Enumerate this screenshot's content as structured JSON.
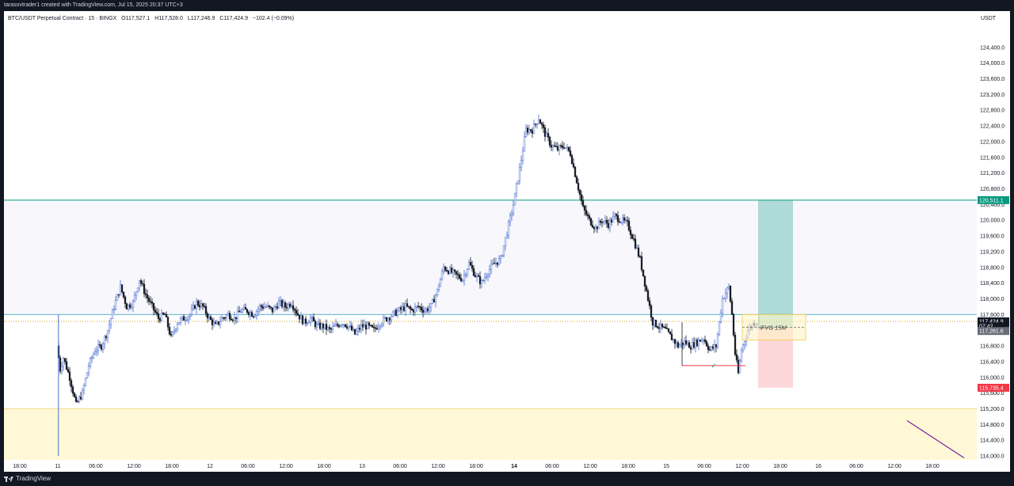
{
  "header": {
    "attribution": "tarasovtrader1 created with TradingView.com, Jul 15, 2025 20:37 UTC+3"
  },
  "footer": {
    "brand": "TradingView"
  },
  "chart_data": {
    "type": "candlestick",
    "symbol_line": {
      "symbol": "BTC/USDT Perpetual Contract · 15 · BINGX",
      "open": "O117,527.1",
      "high": "H117,528.0",
      "low": "L117,246.9",
      "close": "C117,424.9",
      "change": "−102.4 (−0.09%)"
    },
    "currency": "USDT",
    "ylim": [
      113900,
      125000
    ],
    "y_ticks": [
      114000,
      114400,
      114800,
      115200,
      115600,
      116000,
      116400,
      116800,
      117200,
      117600,
      118000,
      118400,
      118800,
      119200,
      119600,
      120000,
      120400,
      120800,
      121200,
      121600,
      122000,
      122400,
      122800,
      123200,
      123600,
      124000,
      124400
    ],
    "y_tick_labels": [
      "114,000.0",
      "114,400.0",
      "114,800.0",
      "115,200.0",
      "115,600.0",
      "116,000.0",
      "116,400.0",
      "116,800.0",
      "117,200.0",
      "117,600.0",
      "118,000.0",
      "118,400.0",
      "118,800.0",
      "119,200.0",
      "119,600.0",
      "120,000.0",
      "120,400.0",
      "120,800.0",
      "121,200.0",
      "121,600.0",
      "122,000.0",
      "122,400.0",
      "122,800.0",
      "123,200.0",
      "123,600.0",
      "124,000.0",
      "124,400.0"
    ],
    "x_ticks": [
      {
        "label": "18:00",
        "hour": -6,
        "bold": false
      },
      {
        "label": "11",
        "hour": 0,
        "bold": false
      },
      {
        "label": "06:00",
        "hour": 6,
        "bold": false
      },
      {
        "label": "12:00",
        "hour": 12,
        "bold": false
      },
      {
        "label": "18:00",
        "hour": 18,
        "bold": false
      },
      {
        "label": "12",
        "hour": 24,
        "bold": false
      },
      {
        "label": "06:00",
        "hour": 30,
        "bold": false
      },
      {
        "label": "12:00",
        "hour": 36,
        "bold": false
      },
      {
        "label": "18:00",
        "hour": 42,
        "bold": false
      },
      {
        "label": "13",
        "hour": 48,
        "bold": false
      },
      {
        "label": "06:00",
        "hour": 54,
        "bold": false
      },
      {
        "label": "12:00",
        "hour": 60,
        "bold": false
      },
      {
        "label": "18:00",
        "hour": 66,
        "bold": false
      },
      {
        "label": "14",
        "hour": 72,
        "bold": true
      },
      {
        "label": "06:00",
        "hour": 78,
        "bold": false
      },
      {
        "label": "12:00",
        "hour": 84,
        "bold": false
      },
      {
        "label": "18:00",
        "hour": 90,
        "bold": false
      },
      {
        "label": "15",
        "hour": 96,
        "bold": false
      },
      {
        "label": "06:00",
        "hour": 102,
        "bold": false
      },
      {
        "label": "12:00",
        "hour": 108,
        "bold": false
      },
      {
        "label": "18:00",
        "hour": 114,
        "bold": false
      },
      {
        "label": "16",
        "hour": 120,
        "bold": false
      },
      {
        "label": "06:00",
        "hour": 126,
        "bold": false
      },
      {
        "label": "12:00",
        "hour": 132,
        "bold": false
      },
      {
        "label": "18:00",
        "hour": 138,
        "bold": false
      }
    ],
    "price_path": [
      [
        0.0,
        116800
      ],
      [
        0.5,
        116200
      ],
      [
        1,
        116500
      ],
      [
        2,
        116000
      ],
      [
        3,
        115300
      ],
      [
        4,
        115600
      ],
      [
        5,
        116300
      ],
      [
        6,
        116700
      ],
      [
        7,
        116800
      ],
      [
        8,
        117200
      ],
      [
        9,
        117800
      ],
      [
        10,
        118300
      ],
      [
        11,
        117800
      ],
      [
        12,
        117900
      ],
      [
        13,
        118500
      ],
      [
        14,
        118100
      ],
      [
        15,
        117800
      ],
      [
        16,
        117500
      ],
      [
        17,
        117600
      ],
      [
        18,
        117000
      ],
      [
        19,
        117400
      ],
      [
        20,
        117500
      ],
      [
        21,
        117600
      ],
      [
        22,
        117900
      ],
      [
        23,
        117800
      ],
      [
        24,
        117500
      ],
      [
        25,
        117300
      ],
      [
        26,
        117500
      ],
      [
        27,
        117600
      ],
      [
        28,
        117500
      ],
      [
        29,
        117700
      ],
      [
        30,
        117700
      ],
      [
        31,
        117600
      ],
      [
        32,
        117800
      ],
      [
        33,
        117800
      ],
      [
        34,
        117700
      ],
      [
        35,
        117900
      ],
      [
        36,
        117800
      ],
      [
        37,
        117900
      ],
      [
        38,
        117600
      ],
      [
        39,
        117400
      ],
      [
        40,
        117500
      ],
      [
        41,
        117300
      ],
      [
        42,
        117300
      ],
      [
        43,
        117200
      ],
      [
        44,
        117300
      ],
      [
        45,
        117400
      ],
      [
        46,
        117300
      ],
      [
        47,
        117100
      ],
      [
        48,
        117300
      ],
      [
        49,
        117300
      ],
      [
        50,
        117200
      ],
      [
        51,
        117400
      ],
      [
        52,
        117500
      ],
      [
        53,
        117600
      ],
      [
        54,
        117700
      ],
      [
        55,
        117800
      ],
      [
        56,
        117700
      ],
      [
        57,
        117800
      ],
      [
        58,
        117700
      ],
      [
        59,
        117800
      ],
      [
        60,
        118200
      ],
      [
        61,
        118800
      ],
      [
        62,
        118700
      ],
      [
        63,
        118600
      ],
      [
        64,
        118500
      ],
      [
        65,
        118900
      ],
      [
        66,
        118600
      ],
      [
        67,
        118400
      ],
      [
        68,
        118700
      ],
      [
        69,
        118900
      ],
      [
        70,
        119000
      ],
      [
        71,
        119700
      ],
      [
        72,
        120400
      ],
      [
        73,
        121300
      ],
      [
        74,
        122300
      ],
      [
        75,
        122300
      ],
      [
        76,
        122600
      ],
      [
        77,
        122200
      ],
      [
        78,
        121900
      ],
      [
        79,
        121800
      ],
      [
        80,
        121900
      ],
      [
        81,
        121700
      ],
      [
        82,
        121000
      ],
      [
        83,
        120300
      ],
      [
        84,
        120000
      ],
      [
        85,
        119800
      ],
      [
        86,
        120000
      ],
      [
        87,
        119900
      ],
      [
        88,
        120100
      ],
      [
        89,
        120000
      ],
      [
        90,
        119900
      ],
      [
        91,
        119500
      ],
      [
        92,
        119000
      ],
      [
        93,
        118200
      ],
      [
        94,
        117400
      ],
      [
        95,
        117300
      ],
      [
        96,
        117200
      ],
      [
        97,
        117000
      ],
      [
        98,
        116800
      ],
      [
        99,
        116900
      ],
      [
        100,
        116800
      ],
      [
        101,
        116900
      ],
      [
        102,
        117000
      ],
      [
        103,
        116700
      ],
      [
        104,
        116800
      ],
      [
        105,
        118000
      ],
      [
        106,
        118300
      ],
      [
        106.5,
        117600
      ],
      [
        107,
        116600
      ],
      [
        107.5,
        116100
      ],
      [
        108,
        116700
      ],
      [
        109,
        117200
      ],
      [
        110,
        117400
      ],
      [
        110.5,
        117420
      ]
    ],
    "horizontal_lines": [
      {
        "price": 120511.1,
        "color": "#089981",
        "label": "120,511.1"
      },
      {
        "price": 117600,
        "color": "#5fb3c9"
      },
      {
        "price": 117424.9,
        "color": "#c9a227",
        "dotted": true
      }
    ],
    "zones": [
      {
        "name": "upper-range-zone",
        "from": 117600,
        "to": 120511.1,
        "fill": "#f7f7fc"
      },
      {
        "name": "demand-zone",
        "from": 113900,
        "to": 115200,
        "fill": "#fff8d6",
        "border": "#f2d98b"
      }
    ],
    "position": {
      "type": "long",
      "start_hour": 110.5,
      "end_hour": 116,
      "entry": 117261.6,
      "target": 120511.1,
      "stop": 115735.4,
      "target_color": "#089981",
      "stop_color": "#f23645"
    },
    "fvg_box": {
      "label": "iFVG 15M",
      "start_hour": 108,
      "end_hour": 118,
      "top": 117600,
      "bottom": 116950,
      "fill": "#fff3c4",
      "border": "#f2cc4a"
    },
    "liquidity_level": {
      "price": 116300,
      "start_hour": 98.5,
      "end_hour": 108.5,
      "color": "#f23645",
      "marker": "✓",
      "marker_color": "#22ab94"
    },
    "trend_line": {
      "from": [
        134,
        114900
      ],
      "to": [
        143,
        113950
      ],
      "color": "#7b1fa2"
    },
    "price_labels": [
      {
        "text": "120,511.1",
        "price": 120511.1,
        "bg": "#089981",
        "fg": "#ffffff"
      },
      {
        "text": "117,424.9",
        "price": 117424.9,
        "bg": "#131722",
        "fg": "#ffffff"
      },
      {
        "text": "07:42",
        "price": 117300,
        "bg": "#131722",
        "fg": "#ffffff"
      },
      {
        "text": "117,261.6",
        "price": 117180,
        "bg": "#6a6d78",
        "fg": "#ffffff"
      },
      {
        "text": "115,735.4",
        "price": 115735.4,
        "bg": "#f23645",
        "fg": "#ffffff"
      }
    ],
    "colors": {
      "up": "#ffffff",
      "up_border": "#4a6fd1",
      "down": "#131722",
      "wick_up": "#4a6fd1",
      "wick_down": "#131722"
    }
  }
}
